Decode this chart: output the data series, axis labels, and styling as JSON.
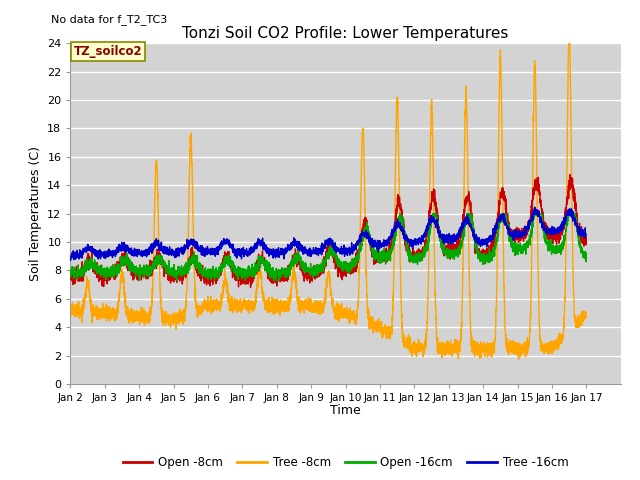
{
  "title": "Tonzi Soil CO2 Profile: Lower Temperatures",
  "subtitle": "No data for f_T2_TC3",
  "ylabel": "Soil Temperatures (C)",
  "xlabel": "Time",
  "annotation": "TZ_soilco2",
  "ylim": [
    0,
    24
  ],
  "yticks": [
    0,
    2,
    4,
    6,
    8,
    10,
    12,
    14,
    16,
    18,
    20,
    22,
    24
  ],
  "xtick_labels": [
    "Jan 2",
    "Jan 3",
    "Jan 4",
    "Jan 5",
    "Jan 6",
    "Jan 7",
    "Jan 8",
    "Jan 9",
    "Jan 10",
    "Jan 11",
    "Jan 12",
    "Jan 13",
    "Jan 14",
    "Jan 15",
    "Jan 16",
    "Jan 17"
  ],
  "bg_color": "#d3d3d3",
  "grid_color": "#ffffff",
  "line_colors": {
    "open_8cm": "#cc0000",
    "tree_8cm": "#ffa500",
    "open_16cm": "#00aa00",
    "tree_16cm": "#0000cc"
  },
  "legend_labels": [
    "Open -8cm",
    "Tree -8cm",
    "Open -16cm",
    "Tree -16cm"
  ],
  "figsize": [
    6.4,
    4.8
  ],
  "dpi": 100
}
